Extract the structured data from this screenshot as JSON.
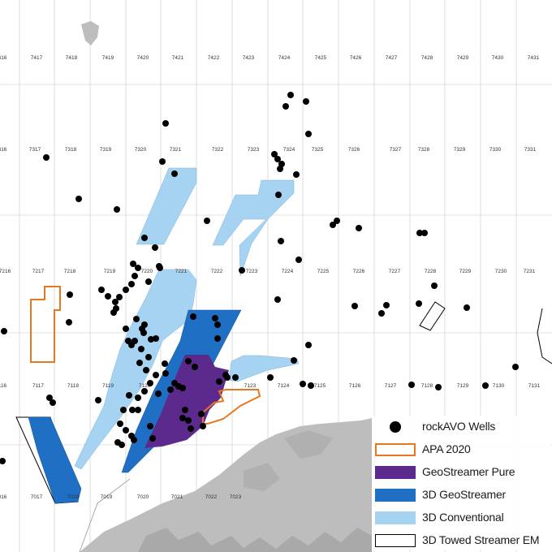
{
  "map": {
    "colors": {
      "land": "#bdbdbd",
      "grid": "#c8c8c8",
      "apa_2020": "#e87722",
      "geostreamer_pure": "#5b2a8c",
      "geostreamer_3d": "#1f6fc4",
      "conventional_3d": "#a7d3f2",
      "towed_streamer_em": "#000000",
      "wells": "#000000"
    },
    "block_labels": {
      "row_74": [
        "7417",
        "7418",
        "7419",
        "7420",
        "7421",
        "7422",
        "7423",
        "7424",
        "7425",
        "7426",
        "7427",
        "7428",
        "7429",
        "7430",
        "7431"
      ],
      "row_73": [
        "7317",
        "7318",
        "7319",
        "7320",
        "7321",
        "7322",
        "7323",
        "7324",
        "7325",
        "7326",
        "7327",
        "7328",
        "7329",
        "7330",
        "7331"
      ],
      "row_72": [
        "7217",
        "7218",
        "7219",
        "7220",
        "7221",
        "7222",
        "7223",
        "7224",
        "7225",
        "7226",
        "7227",
        "7228",
        "7229",
        "7230",
        "7231"
      ],
      "row_71": [
        "7117",
        "7118",
        "7119",
        "7120",
        "7123",
        "7124",
        "7125",
        "7126",
        "7127",
        "7128",
        "7129",
        "7130",
        "7131"
      ],
      "row_70": [
        "7017",
        "7018",
        "7019",
        "7020",
        "7021",
        "7022",
        "7023"
      ],
      "edge": [
        "416",
        "316",
        "7216",
        "116",
        "016"
      ]
    }
  },
  "legend": {
    "wells": "rockAVO Wells",
    "apa": "APA 2020",
    "geostreamer_pure": "GeoStreamer Pure",
    "geostreamer_3d": "3D GeoStreamer",
    "conventional_3d": "3D Conventional",
    "towed_streamer_em": "3D Towed Streamer EM"
  }
}
